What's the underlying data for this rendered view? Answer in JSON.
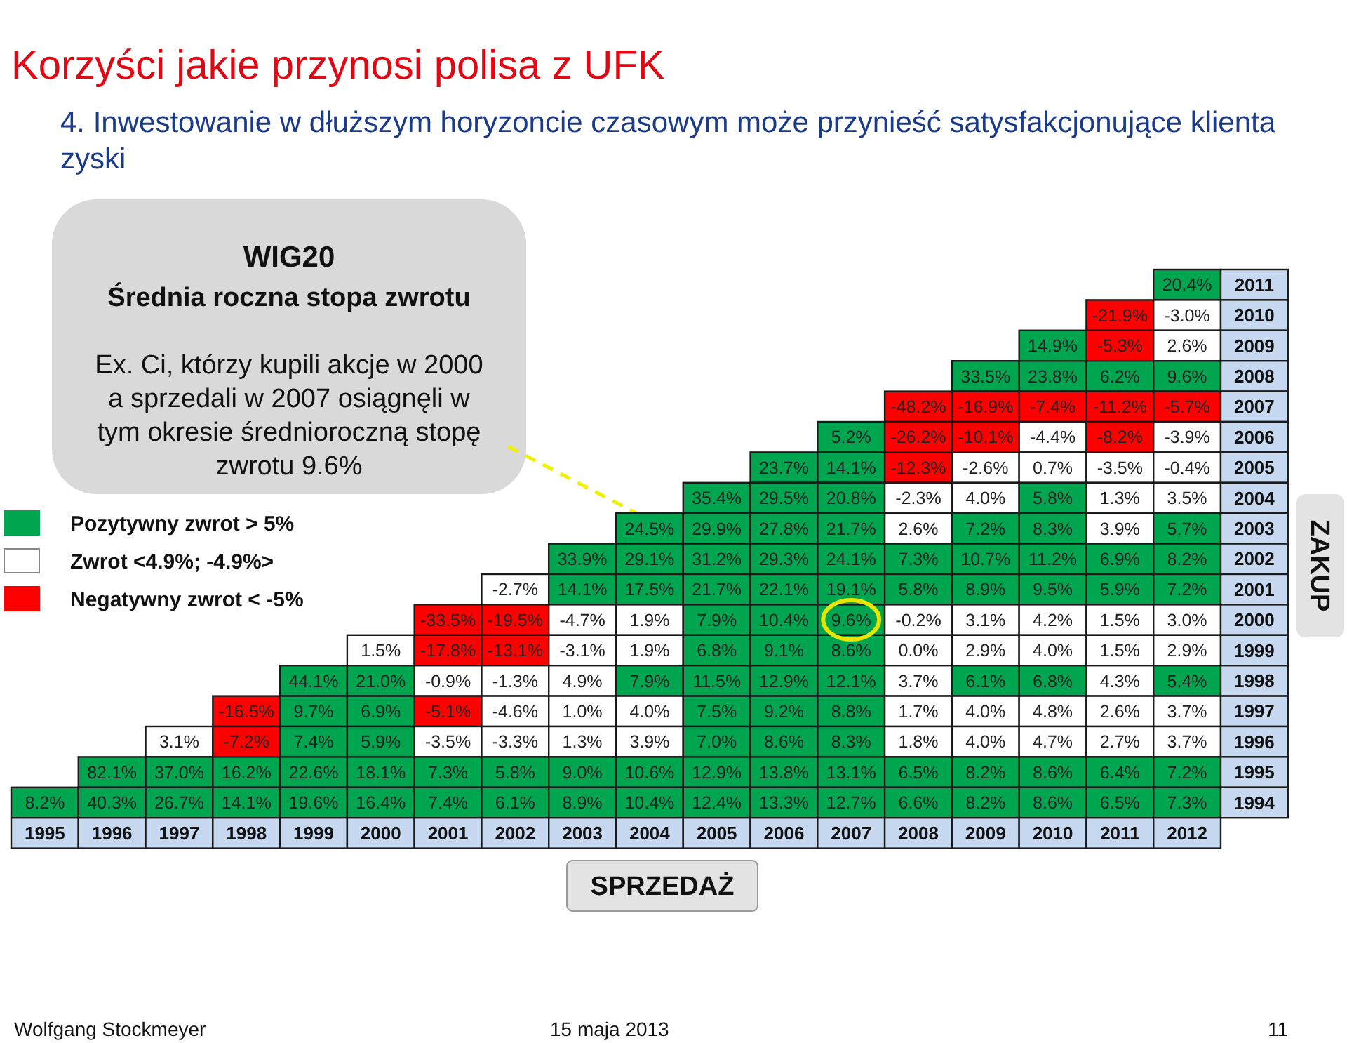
{
  "chart_data": {
    "type": "heatmap",
    "title": "Korzyści jakie przynosi polisa z UFK",
    "subtitle": "4. Inwestowanie w dłuższym horyzoncie czasowym może przynieść satysfakcjonujące klienta zyski",
    "xlabel": "SPRZEDAŻ",
    "ylabel": "ZAKUP",
    "categories": [
      "1995",
      "1996",
      "1997",
      "1998",
      "1999",
      "2000",
      "2001",
      "2002",
      "2003",
      "2004",
      "2005",
      "2006",
      "2007",
      "2008",
      "2009",
      "2010",
      "2011",
      "2012"
    ],
    "y_categories": [
      "2011",
      "2010",
      "2009",
      "2008",
      "2007",
      "2006",
      "2005",
      "2004",
      "2003",
      "2002",
      "2001",
      "2000",
      "1999",
      "1998",
      "1997",
      "1996",
      "1995",
      "1994"
    ],
    "cells": [
      [
        null,
        null,
        null,
        null,
        null,
        null,
        null,
        null,
        null,
        null,
        null,
        null,
        null,
        null,
        null,
        null,
        null,
        20.4
      ],
      [
        null,
        null,
        null,
        null,
        null,
        null,
        null,
        null,
        null,
        null,
        null,
        null,
        null,
        null,
        null,
        null,
        -21.9,
        -3.0
      ],
      [
        null,
        null,
        null,
        null,
        null,
        null,
        null,
        null,
        null,
        null,
        null,
        null,
        null,
        null,
        null,
        14.9,
        -5.3,
        2.6
      ],
      [
        null,
        null,
        null,
        null,
        null,
        null,
        null,
        null,
        null,
        null,
        null,
        null,
        null,
        null,
        33.5,
        23.8,
        6.2,
        9.6
      ],
      [
        null,
        null,
        null,
        null,
        null,
        null,
        null,
        null,
        null,
        null,
        null,
        null,
        null,
        -48.2,
        -16.9,
        -7.4,
        -11.2,
        -5.7
      ],
      [
        null,
        null,
        null,
        null,
        null,
        null,
        null,
        null,
        null,
        null,
        null,
        null,
        5.2,
        -26.2,
        -10.1,
        -4.4,
        -8.2,
        -3.9
      ],
      [
        null,
        null,
        null,
        null,
        null,
        null,
        null,
        null,
        null,
        null,
        null,
        23.7,
        14.1,
        -12.3,
        -2.6,
        0.7,
        -3.5,
        -0.4
      ],
      [
        null,
        null,
        null,
        null,
        null,
        null,
        null,
        null,
        null,
        null,
        35.4,
        29.5,
        20.8,
        -2.3,
        4.0,
        5.8,
        1.3,
        3.5
      ],
      [
        null,
        null,
        null,
        null,
        null,
        null,
        null,
        null,
        null,
        24.5,
        29.9,
        27.8,
        21.7,
        2.6,
        7.2,
        8.3,
        3.9,
        5.7
      ],
      [
        null,
        null,
        null,
        null,
        null,
        null,
        null,
        null,
        33.9,
        29.1,
        31.2,
        29.3,
        24.1,
        7.3,
        10.7,
        11.2,
        6.9,
        8.2
      ],
      [
        null,
        null,
        null,
        null,
        null,
        null,
        null,
        -2.7,
        14.1,
        17.5,
        21.7,
        22.1,
        19.1,
        5.8,
        8.9,
        9.5,
        5.9,
        7.2
      ],
      [
        null,
        null,
        null,
        null,
        null,
        null,
        -33.5,
        -19.5,
        -4.7,
        1.9,
        7.9,
        10.4,
        9.6,
        -0.2,
        3.1,
        4.2,
        1.5,
        3.0
      ],
      [
        null,
        null,
        null,
        null,
        null,
        1.5,
        -17.8,
        -13.1,
        -3.1,
        1.9,
        6.8,
        9.1,
        8.6,
        0.0,
        2.9,
        4.0,
        1.5,
        2.9
      ],
      [
        null,
        null,
        null,
        null,
        44.1,
        21.0,
        -0.9,
        -1.3,
        4.9,
        7.9,
        11.5,
        12.9,
        12.1,
        3.7,
        6.1,
        6.8,
        4.3,
        5.4
      ],
      [
        null,
        null,
        null,
        -16.5,
        9.7,
        6.9,
        -5.1,
        -4.6,
        1.0,
        4.0,
        7.5,
        9.2,
        8.8,
        1.7,
        4.0,
        4.8,
        2.6,
        3.7
      ],
      [
        null,
        null,
        3.1,
        -7.2,
        7.4,
        5.9,
        -3.5,
        -3.3,
        1.3,
        3.9,
        7.0,
        8.6,
        8.3,
        1.8,
        4.0,
        4.7,
        2.7,
        3.7
      ],
      [
        null,
        82.1,
        37.0,
        16.2,
        22.6,
        18.1,
        7.3,
        5.8,
        9.0,
        10.6,
        12.9,
        13.8,
        13.1,
        6.5,
        8.2,
        8.6,
        6.4,
        7.2
      ],
      [
        8.2,
        40.3,
        26.7,
        14.1,
        19.6,
        16.4,
        7.4,
        6.1,
        8.9,
        10.4,
        12.4,
        13.3,
        12.7,
        6.6,
        8.2,
        8.6,
        6.5,
        7.3
      ]
    ],
    "cell_labels": [
      [
        null,
        null,
        null,
        null,
        null,
        null,
        null,
        null,
        null,
        null,
        null,
        null,
        null,
        null,
        null,
        null,
        null,
        "20.4%"
      ],
      [
        null,
        null,
        null,
        null,
        null,
        null,
        null,
        null,
        null,
        null,
        null,
        null,
        null,
        null,
        null,
        null,
        "-21.9%",
        "-3.0%"
      ],
      [
        null,
        null,
        null,
        null,
        null,
        null,
        null,
        null,
        null,
        null,
        null,
        null,
        null,
        null,
        null,
        "14.9%",
        "-5.3%",
        "2.6%"
      ],
      [
        null,
        null,
        null,
        null,
        null,
        null,
        null,
        null,
        null,
        null,
        null,
        null,
        null,
        null,
        "33.5%",
        "23.8%",
        "6.2%",
        "9.6%"
      ],
      [
        null,
        null,
        null,
        null,
        null,
        null,
        null,
        null,
        null,
        null,
        null,
        null,
        null,
        "-48.2%",
        "-16.9%",
        "-7.4%",
        "-11.2%",
        "-5.7%"
      ],
      [
        null,
        null,
        null,
        null,
        null,
        null,
        null,
        null,
        null,
        null,
        null,
        null,
        "5.2%",
        "-26.2%",
        "-10.1%",
        "-4.4%",
        "-8.2%",
        "-3.9%"
      ],
      [
        null,
        null,
        null,
        null,
        null,
        null,
        null,
        null,
        null,
        null,
        null,
        "23.7%",
        "14.1%",
        "-12.3%",
        "-2.6%",
        "0.7%",
        "-3.5%",
        "-0.4%"
      ],
      [
        null,
        null,
        null,
        null,
        null,
        null,
        null,
        null,
        null,
        null,
        "35.4%",
        "29.5%",
        "20.8%",
        "-2.3%",
        "4.0%",
        "5.8%",
        "1.3%",
        "3.5%"
      ],
      [
        null,
        null,
        null,
        null,
        null,
        null,
        null,
        null,
        null,
        "24.5%",
        "29.9%",
        "27.8%",
        "21.7%",
        "2.6%",
        "7.2%",
        "8.3%",
        "3.9%",
        "5.7%"
      ],
      [
        null,
        null,
        null,
        null,
        null,
        null,
        null,
        null,
        "33.9%",
        "29.1%",
        "31.2%",
        "29.3%",
        "24.1%",
        "7.3%",
        "10.7%",
        "11.2%",
        "6.9%",
        "8.2%"
      ],
      [
        null,
        null,
        null,
        null,
        null,
        null,
        null,
        "-2.7%",
        "14.1%",
        "17.5%",
        "21.7%",
        "22.1%",
        "19.1%",
        "5.8%",
        "8.9%",
        "9.5%",
        "5.9%",
        "7.2%"
      ],
      [
        null,
        null,
        null,
        null,
        null,
        null,
        "-33.5%",
        "-19.5%",
        "-4.7%",
        "1.9%",
        "7.9%",
        "10.4%",
        "9.6%",
        "-0.2%",
        "3.1%",
        "4.2%",
        "1.5%",
        "3.0%"
      ],
      [
        null,
        null,
        null,
        null,
        null,
        "1.5%",
        "-17.8%",
        "-13.1%",
        "-3.1%",
        "1.9%",
        "6.8%",
        "9.1%",
        "8.6%",
        "0.0%",
        "2.9%",
        "4.0%",
        "1.5%",
        "2.9%"
      ],
      [
        null,
        null,
        null,
        null,
        "44.1%",
        "21.0%",
        "-0.9%",
        "-1.3%",
        "4.9%",
        "7.9%",
        "11.5%",
        "12.9%",
        "12.1%",
        "3.7%",
        "6.1%",
        "6.8%",
        "4.3%",
        "5.4%"
      ],
      [
        null,
        null,
        null,
        "-16.5%",
        "9.7%",
        "6.9%",
        "-5.1%",
        "-4.6%",
        "1.0%",
        "4.0%",
        "7.5%",
        "9.2%",
        "8.8%",
        "1.7%",
        "4.0%",
        "4.8%",
        "2.6%",
        "3.7%"
      ],
      [
        null,
        null,
        "3.1%",
        "-7.2%",
        "7.4%",
        "5.9%",
        "-3.5%",
        "-3.3%",
        "1.3%",
        "3.9%",
        "7.0%",
        "8.6%",
        "8.3%",
        "1.8%",
        "4.0%",
        "4.7%",
        "2.7%",
        "3.7%"
      ],
      [
        null,
        "82.1%",
        "37.0%",
        "16.2%",
        "22.6%",
        "18.1%",
        "7.3%",
        "5.8%",
        "9.0%",
        "10.6%",
        "12.9%",
        "13.8%",
        "13.1%",
        "6.5%",
        "8.2%",
        "8.6%",
        "6.4%",
        "7.2%"
      ],
      [
        "8.2%",
        "40.3%",
        "26.7%",
        "14.1%",
        "19.6%",
        "16.4%",
        "7.4%",
        "6.1%",
        "8.9%",
        "10.4%",
        "12.4%",
        "13.3%",
        "12.7%",
        "6.6%",
        "8.2%",
        "8.6%",
        "6.5%",
        "7.3%"
      ]
    ],
    "annotations": [
      "WIG20",
      "Średnia roczna stopa zwrotu",
      "Ex. Ci, którzy kupili akcje w 2000 a sprzedali w 2007 osiągnęli w tym okresie średnioroczną stopę zwrotu 9.6%",
      "Pozytywny zwrot > 5%",
      "Zwrot <4.9%; -4.9%>",
      "Negatywny zwrot < -5%",
      "Wolfgang Stockmeyer",
      "15 maja 2013",
      "11"
    ]
  }
}
